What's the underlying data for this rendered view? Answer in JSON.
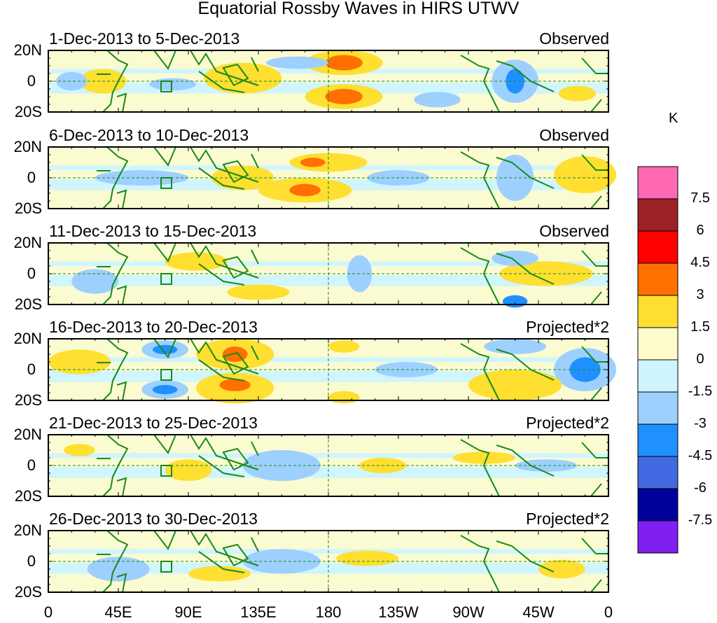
{
  "title": "Equatorial Rossby Waves in HIRS UTWV",
  "panels": [
    {
      "date_range": "1-Dec-2013 to 5-Dec-2013",
      "type": "Observed"
    },
    {
      "date_range": "6-Dec-2013 to 10-Dec-2013",
      "type": "Observed"
    },
    {
      "date_range": "11-Dec-2013 to 15-Dec-2013",
      "type": "Observed"
    },
    {
      "date_range": "16-Dec-2013 to 20-Dec-2013",
      "type": "Projected*2"
    },
    {
      "date_range": "21-Dec-2013 to 25-Dec-2013",
      "type": "Projected*2"
    },
    {
      "date_range": "26-Dec-2013 to 30-Dec-2013",
      "type": "Projected*2"
    }
  ],
  "lat_labels": [
    "20N",
    "0",
    "20S"
  ],
  "lon_labels": [
    "0",
    "45E",
    "90E",
    "135E",
    "180",
    "135W",
    "90W",
    "45W",
    "0"
  ],
  "colorbar": {
    "unit": "K",
    "labels": [
      "7.5",
      "6",
      "4.5",
      "3",
      "1.5",
      "0",
      "-1.5",
      "-3",
      "-4.5",
      "-6",
      "-7.5"
    ],
    "colors": [
      "#ff69b4",
      "#9b2226",
      "#ff0000",
      "#ff7000",
      "#ffdf30",
      "#fffccc",
      "#cff5ff",
      "#9dd0ff",
      "#1e90ff",
      "#4169e1",
      "#00009a",
      "#8020f0"
    ]
  }
}
